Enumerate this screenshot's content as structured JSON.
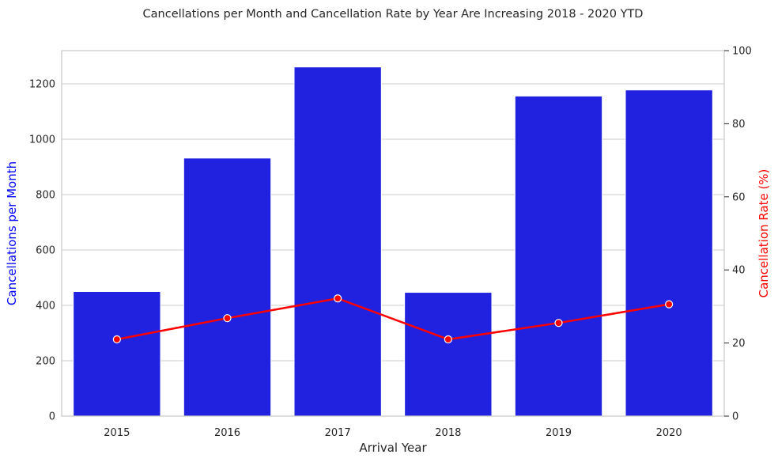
{
  "chart_data": {
    "type": "bar",
    "title": "Cancellations per Month and Cancellation Rate by Year Are Increasing 2018 - 2020 YTD",
    "xlabel": "Arrival Year",
    "categories": [
      "2015",
      "2016",
      "2017",
      "2018",
      "2019",
      "2020"
    ],
    "ylabel": "Cancellations per Month",
    "ylabel_right": "Cancellation Rate (%)",
    "ylim": [
      0,
      1320
    ],
    "ylim_right": [
      0,
      100
    ],
    "yticks": [
      0,
      200,
      400,
      600,
      800,
      1000,
      1200
    ],
    "yticks_right": [
      0,
      20,
      40,
      60,
      80,
      100
    ],
    "grid": true,
    "series": [
      {
        "type": "bar",
        "axis": "left",
        "color": "#2121e0",
        "values": [
          450,
          932,
          1261,
          447,
          1156,
          1178
        ]
      },
      {
        "type": "line",
        "axis": "right",
        "color": "#ff0000",
        "values": [
          21.0,
          26.8,
          32.2,
          21.0,
          25.5,
          30.6
        ]
      }
    ],
    "colors": {
      "left_label": "#0000ff",
      "right_label": "#ff0000",
      "grid": "#cccccc",
      "spine": "#cccccc"
    }
  }
}
